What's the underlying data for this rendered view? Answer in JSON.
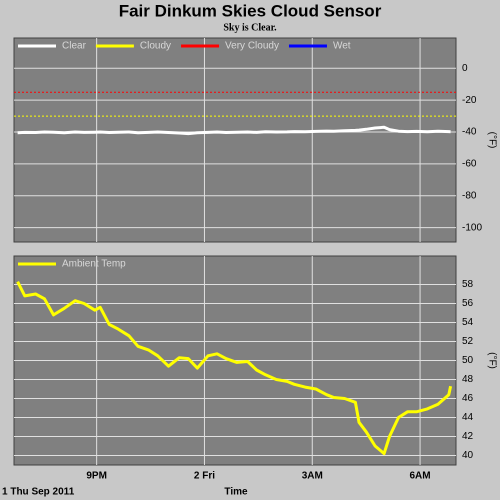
{
  "chart_data": [
    {
      "type": "line",
      "title": "Fair Dinkum Skies Cloud Sensor",
      "subtitle": "Sky is Clear.",
      "y_label": "(°F)",
      "x": [
        18.8,
        19.0,
        19.3,
        19.55,
        19.8,
        20.1,
        20.4,
        20.65,
        20.95,
        21.1,
        21.35,
        21.6,
        21.9,
        22.15,
        22.45,
        22.7,
        23.0,
        23.3,
        23.55,
        23.8,
        24.1,
        24.35,
        24.6,
        24.9,
        25.2,
        25.45,
        25.7,
        26.0,
        26.3,
        26.5,
        26.8,
        27.1,
        27.4,
        27.6,
        27.9,
        28.2,
        28.3,
        28.5,
        28.75,
        29.0,
        29.15,
        29.4,
        29.65,
        29.9,
        30.2,
        30.5,
        30.8,
        30.85
      ],
      "xlim": [
        18.7,
        31
      ],
      "xticks": [
        {
          "value": 21,
          "label": "9PM"
        },
        {
          "value": 24,
          "label": "2 Fri"
        },
        {
          "value": 27,
          "label": "3AM"
        },
        {
          "value": 30,
          "label": "6AM"
        }
      ],
      "ylim": [
        -109,
        19
      ],
      "yticks": [
        0,
        -20,
        -40,
        -60,
        -80,
        -100
      ],
      "grid": true,
      "series": [
        {
          "name": "Clear",
          "color": "#ffffff",
          "values": [
            -40.5,
            -40.2,
            -40.3,
            -40.0,
            -40.1,
            -40.4,
            -40.0,
            -40.2,
            -40.1,
            -40.0,
            -40.3,
            -40.1,
            -40.0,
            -40.4,
            -40.2,
            -40.0,
            -40.3,
            -40.6,
            -41.0,
            -40.4,
            -40.2,
            -40.0,
            -40.3,
            -40.1,
            -40.0,
            -40.2,
            -39.8,
            -40.0,
            -39.9,
            -39.7,
            -39.8,
            -39.6,
            -39.4,
            -39.5,
            -39.2,
            -39.0,
            -38.8,
            -38.3,
            -37.5,
            -37.0,
            -38.5,
            -39.5,
            -39.7,
            -39.6,
            -39.8,
            -39.5,
            -39.7,
            -39.8
          ]
        },
        {
          "name": "Cloudy",
          "color": "#ffff00",
          "threshold": -30
        },
        {
          "name": "Very Cloudy",
          "color": "#ff0000",
          "threshold": -15
        },
        {
          "name": "Wet",
          "color": "#0000ff"
        }
      ]
    },
    {
      "type": "line",
      "y_label": "(°F)",
      "x_label": "Time",
      "date_label": "1 Thu Sep 2011",
      "x": [
        18.8,
        19.0,
        19.3,
        19.55,
        19.8,
        20.1,
        20.4,
        20.65,
        20.95,
        21.1,
        21.35,
        21.6,
        21.9,
        22.15,
        22.45,
        22.7,
        23.0,
        23.3,
        23.55,
        23.8,
        24.1,
        24.35,
        24.6,
        24.9,
        25.2,
        25.45,
        25.7,
        26.0,
        26.3,
        26.5,
        26.8,
        27.1,
        27.4,
        27.6,
        27.9,
        28.2,
        28.3,
        28.5,
        28.75,
        29.0,
        29.15,
        29.4,
        29.65,
        29.9,
        30.2,
        30.5,
        30.8,
        30.85
      ],
      "xlim": [
        18.7,
        31
      ],
      "xticks": [
        {
          "value": 21,
          "label": "9PM"
        },
        {
          "value": 24,
          "label": "2 Fri"
        },
        {
          "value": 27,
          "label": "3AM"
        },
        {
          "value": 30,
          "label": "6AM"
        }
      ],
      "ylim": [
        39,
        61
      ],
      "yticks": [
        40,
        42,
        44,
        46,
        48,
        50,
        52,
        54,
        56,
        58
      ],
      "grid": true,
      "series": [
        {
          "name": "Ambient Temp",
          "color": "#ffff00",
          "values": [
            58.3,
            56.8,
            57.0,
            56.5,
            54.8,
            55.5,
            56.3,
            56.0,
            55.3,
            55.6,
            53.8,
            53.3,
            52.6,
            51.5,
            51.1,
            50.5,
            49.4,
            50.3,
            50.2,
            49.2,
            50.5,
            50.7,
            50.2,
            49.8,
            49.9,
            49.0,
            48.5,
            48.0,
            47.8,
            47.5,
            47.2,
            47.0,
            46.4,
            46.1,
            46.0,
            45.6,
            43.5,
            42.5,
            41.0,
            40.2,
            42.0,
            44.0,
            44.6,
            44.6,
            44.9,
            45.4,
            46.4,
            47.3
          ]
        }
      ]
    }
  ]
}
